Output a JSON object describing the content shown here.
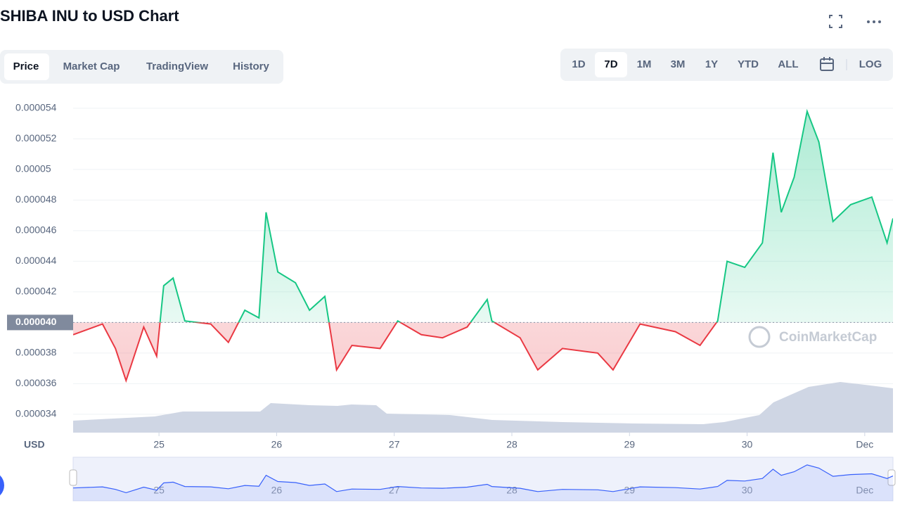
{
  "chart_data": {
    "type": "line",
    "title": "SHIBA INU to USD Chart",
    "y_label": "USD",
    "x": [
      24.27,
      24.52,
      24.63,
      24.72,
      24.87,
      24.98,
      25.04,
      25.12,
      25.22,
      25.44,
      25.59,
      25.73,
      25.85,
      25.91,
      26.01,
      26.16,
      26.28,
      26.41,
      26.51,
      26.64,
      26.88,
      27.03,
      27.23,
      27.41,
      27.62,
      27.79,
      27.83,
      28.07,
      28.22,
      28.43,
      28.73,
      28.86,
      29.09,
      29.39,
      29.6,
      29.75,
      29.83,
      29.98,
      30.13,
      30.22,
      30.29,
      30.4,
      30.51,
      30.61,
      30.73,
      30.88,
      31.06,
      31.19,
      31.24
    ],
    "values": [
      3.92e-05,
      3.99e-05,
      3.83e-05,
      3.62e-05,
      3.97e-05,
      3.78e-05,
      4.24e-05,
      4.29e-05,
      4.01e-05,
      3.99e-05,
      3.87e-05,
      4.08e-05,
      4.03e-05,
      4.72e-05,
      4.33e-05,
      4.26e-05,
      4.08e-05,
      4.17e-05,
      3.69e-05,
      3.85e-05,
      3.83e-05,
      4.01e-05,
      3.92e-05,
      3.9e-05,
      3.97e-05,
      4.15e-05,
      4.01e-05,
      3.9e-05,
      3.69e-05,
      3.83e-05,
      3.8e-05,
      3.69e-05,
      3.99e-05,
      3.94e-05,
      3.85e-05,
      4.01e-05,
      4.4e-05,
      4.36e-05,
      4.52e-05,
      5.11e-05,
      4.72e-05,
      4.95e-05,
      5.38e-05,
      5.18e-05,
      4.66e-05,
      4.77e-05,
      4.82e-05,
      4.52e-05,
      4.68e-05
    ],
    "up_color": "#16c784",
    "down_color": "#ea3943",
    "baseline": {
      "value": 4e-05,
      "label": "0.000040"
    },
    "xlim": [
      24.27,
      31.24
    ],
    "ylim": [
      3.28e-05,
      5.51e-05
    ],
    "xticks": [
      25,
      26,
      27,
      28,
      29,
      30,
      {
        "value": 31,
        "label": "Dec"
      }
    ],
    "yticks": [
      3.4e-05,
      3.6e-05,
      3.8e-05,
      4e-05,
      4.2e-05,
      4.4e-05,
      4.6e-05,
      4.8e-05,
      5e-05,
      5.2e-05,
      5.4e-05
    ],
    "grid": true
  },
  "ui": {
    "tabs": [
      "Price",
      "Market Cap",
      "TradingView",
      "History"
    ],
    "ranges": [
      "1D",
      "7D",
      "1M",
      "3M",
      "1Y",
      "YTD",
      "ALL"
    ],
    "log": "LOG",
    "watermark": "CoinMarketCap"
  }
}
